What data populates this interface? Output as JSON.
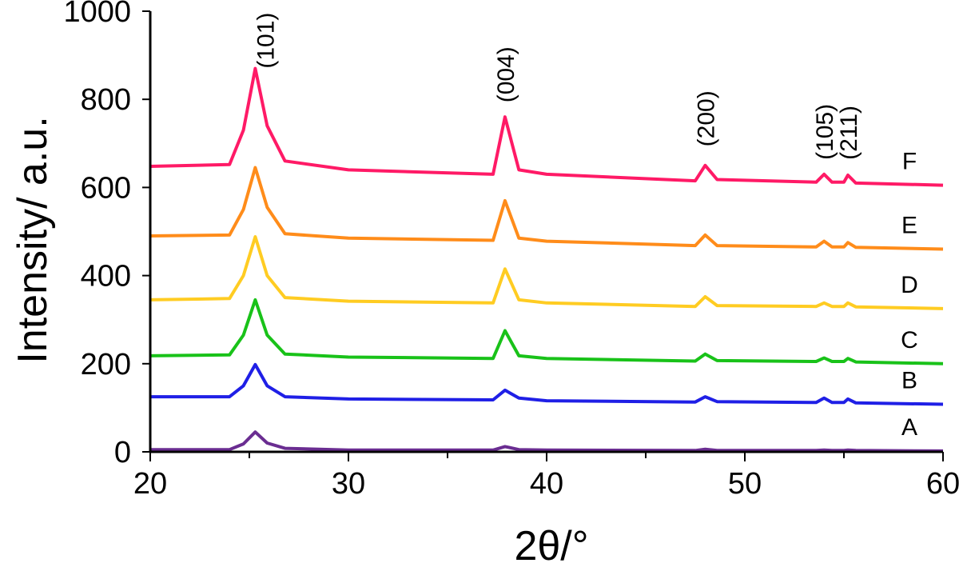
{
  "chart_data": {
    "type": "line",
    "xlabel": "2θ/°",
    "ylabel": "Intensity/ a.u.",
    "xlim": [
      20,
      60
    ],
    "ylim": [
      0,
      1000
    ],
    "xticks": [
      20,
      30,
      40,
      50,
      60
    ],
    "xtick_labels": [
      "20",
      "30",
      "40",
      "50",
      "60"
    ],
    "yticks": [
      0,
      200,
      400,
      600,
      800,
      1000
    ],
    "ytick_labels": [
      "0",
      "200",
      "400",
      "600",
      "800",
      "1000"
    ],
    "peak_annotations": [
      {
        "label": "(101)",
        "x": 25.3,
        "y": 870
      },
      {
        "label": "(004)",
        "x": 37.9,
        "y": 760
      },
      {
        "label": "(200)",
        "x": 48.0,
        "y": 660
      },
      {
        "label": "(105)",
        "x": 54.0,
        "y": 630
      },
      {
        "label": "(211)",
        "x": 55.2,
        "y": 630
      }
    ],
    "series": [
      {
        "name": "A",
        "color": "#6a2d91",
        "x": [
          20,
          24.0,
          24.7,
          25.3,
          25.9,
          26.8,
          30,
          37.3,
          37.9,
          38.6,
          40,
          47.5,
          48.0,
          48.6,
          53.6,
          54.0,
          54.4,
          55.0,
          55.2,
          55.6,
          60
        ],
        "y": [
          5,
          5,
          18,
          45,
          20,
          8,
          4,
          4,
          12,
          5,
          4,
          3,
          6,
          3,
          3,
          4,
          3,
          3,
          4,
          3,
          2
        ]
      },
      {
        "name": "B",
        "color": "#1f1fe6",
        "x": [
          20,
          24.0,
          24.7,
          25.3,
          25.9,
          26.8,
          30,
          37.3,
          37.9,
          38.6,
          40,
          47.5,
          48.0,
          48.6,
          53.6,
          54.0,
          54.4,
          55.0,
          55.2,
          55.6,
          60
        ],
        "y": [
          125,
          125,
          150,
          198,
          150,
          125,
          120,
          118,
          140,
          122,
          116,
          113,
          125,
          114,
          112,
          122,
          112,
          112,
          120,
          111,
          108
        ]
      },
      {
        "name": "C",
        "color": "#19c219",
        "x": [
          20,
          24.0,
          24.7,
          25.3,
          25.9,
          26.8,
          30,
          37.3,
          37.9,
          38.6,
          40,
          47.5,
          48.0,
          48.6,
          53.6,
          54.0,
          54.4,
          55.0,
          55.2,
          55.6,
          60
        ],
        "y": [
          218,
          220,
          265,
          345,
          265,
          222,
          215,
          212,
          275,
          218,
          212,
          206,
          222,
          207,
          205,
          213,
          205,
          205,
          212,
          204,
          200
        ]
      },
      {
        "name": "D",
        "color": "#ffcc22",
        "x": [
          20,
          24.0,
          24.7,
          25.3,
          25.9,
          26.8,
          30,
          37.3,
          37.9,
          38.6,
          40,
          47.5,
          48.0,
          48.6,
          53.6,
          54.0,
          54.4,
          55.0,
          55.2,
          55.6,
          60
        ],
        "y": [
          345,
          348,
          400,
          488,
          400,
          350,
          342,
          338,
          415,
          345,
          338,
          330,
          352,
          332,
          330,
          338,
          330,
          330,
          338,
          329,
          325
        ]
      },
      {
        "name": "E",
        "color": "#ff8c1a",
        "x": [
          20,
          24.0,
          24.7,
          25.3,
          25.9,
          26.8,
          30,
          37.3,
          37.9,
          38.6,
          40,
          47.5,
          48.0,
          48.6,
          53.6,
          54.0,
          54.4,
          55.0,
          55.2,
          55.6,
          60
        ],
        "y": [
          490,
          492,
          550,
          645,
          555,
          495,
          485,
          480,
          570,
          485,
          478,
          468,
          492,
          468,
          465,
          478,
          465,
          465,
          475,
          464,
          460
        ]
      },
      {
        "name": "F",
        "color": "#ff1a66",
        "x": [
          20,
          24.0,
          24.7,
          25.3,
          25.9,
          26.8,
          30,
          37.3,
          37.9,
          38.6,
          40,
          47.5,
          48.0,
          48.6,
          53.6,
          54.0,
          54.4,
          55.0,
          55.2,
          55.6,
          60
        ],
        "y": [
          648,
          652,
          730,
          870,
          740,
          660,
          640,
          630,
          760,
          640,
          630,
          615,
          650,
          618,
          612,
          630,
          612,
          612,
          628,
          610,
          605
        ]
      }
    ]
  }
}
